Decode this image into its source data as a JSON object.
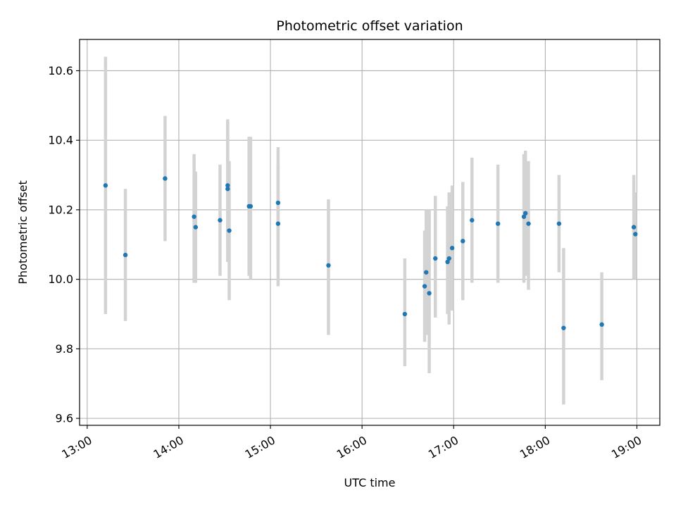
{
  "chart_data": {
    "type": "scatter",
    "title": "Photometric offset variation",
    "xlabel": "UTC time",
    "ylabel": "Photometric offset",
    "x_ticks": [
      "13:00",
      "14:00",
      "15:00",
      "16:00",
      "17:00",
      "18:00",
      "19:00"
    ],
    "y_ticks": [
      "9.6",
      "9.8",
      "10.0",
      "10.2",
      "10.4",
      "10.6"
    ],
    "xlim": [
      "12:55",
      "19:15"
    ],
    "ylim": [
      9.58,
      10.69
    ],
    "grid": true,
    "legend": "none",
    "colors": {
      "point": "#1f77b4",
      "errorbar": "#d3d3d3",
      "grid": "#b0b0b0"
    },
    "points": [
      {
        "t": "13:12",
        "y": 10.27,
        "err_low": 9.9,
        "err_high": 10.64
      },
      {
        "t": "13:25",
        "y": 10.07,
        "err_low": 9.88,
        "err_high": 10.26
      },
      {
        "t": "13:51",
        "y": 10.29,
        "err_low": 10.11,
        "err_high": 10.47
      },
      {
        "t": "14:10",
        "y": 10.18,
        "err_low": 9.99,
        "err_high": 10.36
      },
      {
        "t": "14:11",
        "y": 10.15,
        "err_low": 9.99,
        "err_high": 10.31
      },
      {
        "t": "14:27",
        "y": 10.17,
        "err_low": 10.01,
        "err_high": 10.33
      },
      {
        "t": "14:32",
        "y": 10.27,
        "err_low": 10.08,
        "err_high": 10.46
      },
      {
        "t": "14:32",
        "y": 10.26,
        "err_low": 10.05,
        "err_high": 10.45
      },
      {
        "t": "14:33",
        "y": 10.14,
        "err_low": 9.94,
        "err_high": 10.34
      },
      {
        "t": "14:46",
        "y": 10.21,
        "err_low": 10.01,
        "err_high": 10.41
      },
      {
        "t": "14:47",
        "y": 10.21,
        "err_low": 10.0,
        "err_high": 10.41
      },
      {
        "t": "15:05",
        "y": 10.22,
        "err_low": 10.06,
        "err_high": 10.38
      },
      {
        "t": "15:05",
        "y": 10.16,
        "err_low": 9.98,
        "err_high": 10.33
      },
      {
        "t": "15:38",
        "y": 10.04,
        "err_low": 9.84,
        "err_high": 10.23
      },
      {
        "t": "16:28",
        "y": 9.9,
        "err_low": 9.75,
        "err_high": 10.06
      },
      {
        "t": "16:41",
        "y": 9.98,
        "err_low": 9.82,
        "err_high": 10.14
      },
      {
        "t": "16:42",
        "y": 10.02,
        "err_low": 9.84,
        "err_high": 10.2
      },
      {
        "t": "16:44",
        "y": 9.96,
        "err_low": 9.73,
        "err_high": 10.2
      },
      {
        "t": "16:48",
        "y": 10.06,
        "err_low": 9.89,
        "err_high": 10.24
      },
      {
        "t": "16:56",
        "y": 10.05,
        "err_low": 9.9,
        "err_high": 10.21
      },
      {
        "t": "16:57",
        "y": 10.06,
        "err_low": 9.87,
        "err_high": 10.25
      },
      {
        "t": "16:59",
        "y": 10.09,
        "err_low": 9.91,
        "err_high": 10.27
      },
      {
        "t": "17:06",
        "y": 10.11,
        "err_low": 9.94,
        "err_high": 10.28
      },
      {
        "t": "17:12",
        "y": 10.17,
        "err_low": 9.99,
        "err_high": 10.35
      },
      {
        "t": "17:29",
        "y": 10.16,
        "err_low": 9.99,
        "err_high": 10.33
      },
      {
        "t": "17:46",
        "y": 10.18,
        "err_low": 9.99,
        "err_high": 10.36
      },
      {
        "t": "17:47",
        "y": 10.19,
        "err_low": 10.01,
        "err_high": 10.37
      },
      {
        "t": "17:49",
        "y": 10.16,
        "err_low": 9.97,
        "err_high": 10.34
      },
      {
        "t": "18:09",
        "y": 10.16,
        "err_low": 10.02,
        "err_high": 10.3
      },
      {
        "t": "18:12",
        "y": 9.86,
        "err_low": 9.64,
        "err_high": 10.09
      },
      {
        "t": "18:37",
        "y": 9.87,
        "err_low": 9.71,
        "err_high": 10.02
      },
      {
        "t": "18:58",
        "y": 10.15,
        "err_low": 10.0,
        "err_high": 10.3
      },
      {
        "t": "18:59",
        "y": 10.13,
        "err_low": 10.0,
        "err_high": 10.25
      }
    ]
  }
}
